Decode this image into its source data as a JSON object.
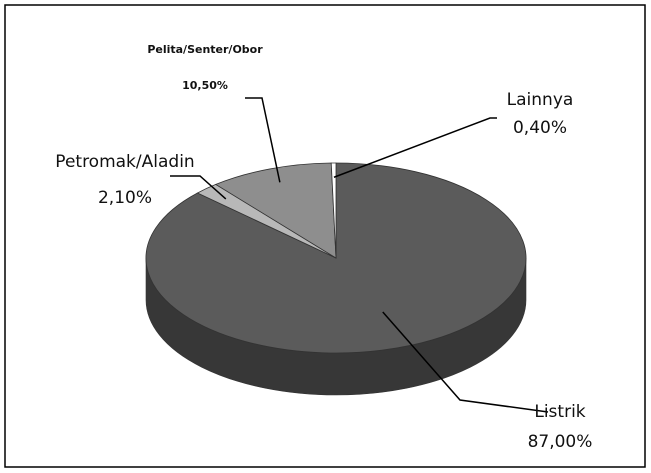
{
  "chart_data": {
    "type": "pie",
    "categories": [
      "Listrik",
      "Petromak/Aladin",
      "Pelita/Senter/Obor",
      "Lainnya"
    ],
    "values": [
      87.0,
      2.1,
      10.5,
      0.4
    ],
    "value_labels": [
      "87,00%",
      "2,10%",
      "10,50%",
      "0,40%"
    ],
    "colors": [
      "#5b5b5b",
      "#b8b8b8",
      "#8e8e8e",
      "#ffffff"
    ]
  }
}
